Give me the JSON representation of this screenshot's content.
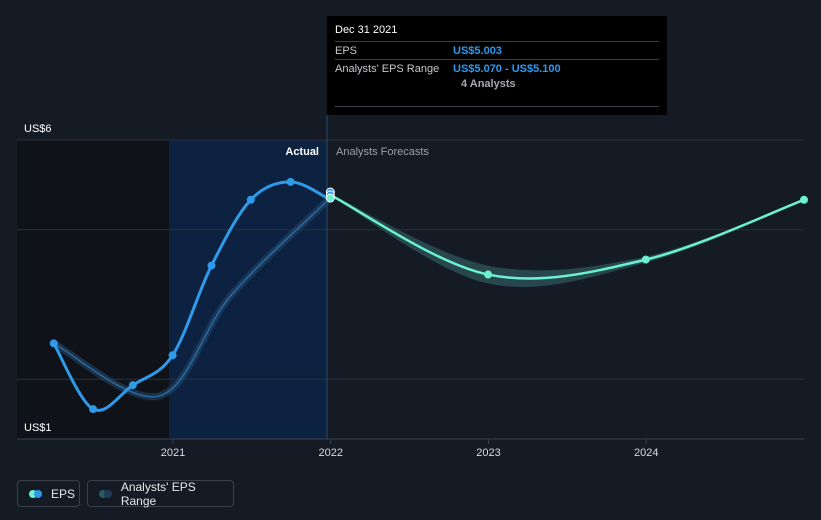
{
  "tooltip": {
    "date": "Dec 31 2021",
    "eps_label": "EPS",
    "eps_value": "US$5.003",
    "range_label": "Analysts' EPS Range",
    "range_value": "US$5.070 - US$5.100",
    "analysts": "4 Analysts"
  },
  "legend": {
    "eps_label": "EPS",
    "range_label": "Analysts' EPS Range"
  },
  "colors": {
    "background": "#151b24",
    "eps_line": "#2f9ae8",
    "forecast_line": "#6cf0d2",
    "range_band": "#2a4f55",
    "past_shade": "#0f1218",
    "highlight": "#0d2240"
  },
  "chart_data": {
    "type": "line",
    "y_tick_labels": [
      "US$1",
      "US$6"
    ],
    "ylim": [
      1,
      6
    ],
    "x_ticks": [
      {
        "label": "2021",
        "x": "2021-01-01"
      },
      {
        "label": "2022",
        "x": "2022-01-01"
      },
      {
        "label": "2023",
        "x": "2023-01-01"
      },
      {
        "label": "2024",
        "x": "2024-01-01"
      }
    ],
    "xlim": [
      "2020-01-06",
      "2024-12-31"
    ],
    "region_labels": {
      "actual": "Actual",
      "forecast": "Analysts Forecasts"
    },
    "series": [
      {
        "name": "EPS",
        "points": [
          {
            "x": "2020-03-31",
            "y": 2.6
          },
          {
            "x": "2020-06-30",
            "y": 1.5
          },
          {
            "x": "2020-09-30",
            "y": 1.9
          },
          {
            "x": "2020-12-31",
            "y": 2.4
          },
          {
            "x": "2021-03-31",
            "y": 3.9
          },
          {
            "x": "2021-06-30",
            "y": 5.0
          },
          {
            "x": "2021-09-30",
            "y": 5.3
          },
          {
            "x": "2021-12-31",
            "y": 5.0
          }
        ]
      },
      {
        "name": "Analysts' EPS Range",
        "points": [
          {
            "x": "2021-12-31",
            "low": 5.07,
            "high": 5.1
          },
          {
            "x": "2022-12-31",
            "low": 3.6,
            "high": 3.9
          },
          {
            "x": "2023-12-31",
            "low": 3.95,
            "high": 4.05
          },
          {
            "x": "2024-12-31",
            "low": 4.98,
            "high": 5.02
          }
        ]
      }
    ],
    "forecast_points": [
      {
        "x": "2021-12-31",
        "y": 5.08
      },
      {
        "x": "2022-12-31",
        "y": 3.75
      },
      {
        "x": "2023-12-31",
        "y": 4.0
      },
      {
        "x": "2024-12-31",
        "y": 5.0
      }
    ],
    "grid": true,
    "legend_position": "bottom-left"
  }
}
